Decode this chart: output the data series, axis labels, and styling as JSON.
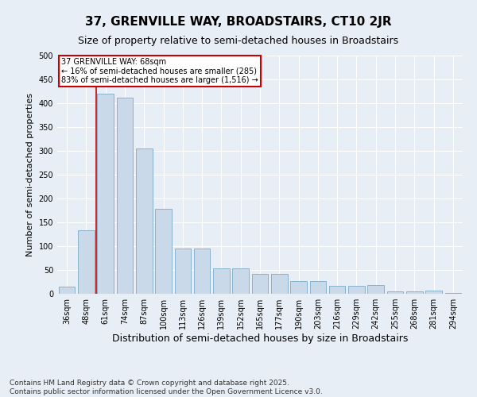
{
  "title": "37, GRENVILLE WAY, BROADSTAIRS, CT10 2JR",
  "subtitle": "Size of property relative to semi-detached houses in Broadstairs",
  "xlabel": "Distribution of semi-detached houses by size in Broadstairs",
  "ylabel": "Number of semi-detached properties",
  "categories": [
    "36sqm",
    "48sqm",
    "61sqm",
    "74sqm",
    "87sqm",
    "100sqm",
    "113sqm",
    "126sqm",
    "139sqm",
    "152sqm",
    "165sqm",
    "177sqm",
    "190sqm",
    "203sqm",
    "216sqm",
    "229sqm",
    "242sqm",
    "255sqm",
    "268sqm",
    "281sqm",
    "294sqm"
  ],
  "values": [
    15,
    133,
    420,
    412,
    305,
    178,
    95,
    95,
    53,
    53,
    42,
    42,
    27,
    27,
    16,
    16,
    19,
    5,
    5,
    6,
    1
  ],
  "bar_color": "#c9d9ea",
  "bar_edge_color": "#7aaac8",
  "property_line_x": 1.5,
  "annotation_title": "37 GRENVILLE WAY: 68sqm",
  "annotation_line1": "← 16% of semi-detached houses are smaller (285)",
  "annotation_line2": "83% of semi-detached houses are larger (1,516) →",
  "annotation_box_color": "#ffffff",
  "annotation_box_edge": "#cc0000",
  "line_color": "#cc0000",
  "ylim": [
    0,
    500
  ],
  "yticks": [
    0,
    50,
    100,
    150,
    200,
    250,
    300,
    350,
    400,
    450,
    500
  ],
  "bg_color": "#e8eef5",
  "plot_bg_color": "#e8eef5",
  "grid_color": "#ffffff",
  "footnote": "Contains HM Land Registry data © Crown copyright and database right 2025.\nContains public sector information licensed under the Open Government Licence v3.0.",
  "title_fontsize": 11,
  "subtitle_fontsize": 9,
  "xlabel_fontsize": 9,
  "ylabel_fontsize": 8,
  "tick_fontsize": 7,
  "footnote_fontsize": 6.5
}
